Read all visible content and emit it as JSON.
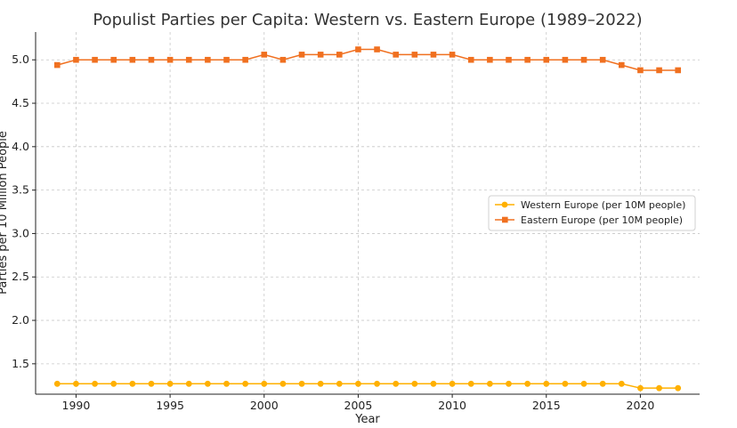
{
  "chart_data": {
    "type": "line",
    "title": "Populist Parties per Capita: Western vs. Eastern Europe (1989–2022)",
    "xlabel": "Year",
    "ylabel": "Parties per 10 Million People",
    "xlim": [
      1987.85,
      2023.15
    ],
    "ylim": [
      1.15,
      5.32
    ],
    "xticks": [
      1990,
      1995,
      2000,
      2005,
      2010,
      2015,
      2020
    ],
    "yticks": [
      1.5,
      2.0,
      2.5,
      3.0,
      3.5,
      4.0,
      4.5,
      5.0
    ],
    "ytick_labels": [
      "1.5",
      "2.0",
      "2.5",
      "3.0",
      "3.5",
      "4.0",
      "4.5",
      "5.0"
    ],
    "grid": true,
    "legend_position": "center-right",
    "x": [
      1989,
      1990,
      1991,
      1992,
      1993,
      1994,
      1995,
      1996,
      1997,
      1998,
      1999,
      2000,
      2001,
      2002,
      2003,
      2004,
      2005,
      2006,
      2007,
      2008,
      2009,
      2010,
      2011,
      2012,
      2013,
      2014,
      2015,
      2016,
      2017,
      2018,
      2019,
      2020,
      2021,
      2022
    ],
    "series": [
      {
        "name": "Western Europe (per 10M people)",
        "color": "#FFB000",
        "marker": "circle",
        "values": [
          1.27,
          1.27,
          1.27,
          1.27,
          1.27,
          1.27,
          1.27,
          1.27,
          1.27,
          1.27,
          1.27,
          1.27,
          1.27,
          1.27,
          1.27,
          1.27,
          1.27,
          1.27,
          1.27,
          1.27,
          1.27,
          1.27,
          1.27,
          1.27,
          1.27,
          1.27,
          1.27,
          1.27,
          1.27,
          1.27,
          1.27,
          1.22,
          1.22,
          1.22
        ]
      },
      {
        "name": "Eastern Europe (per 10M people)",
        "color": "#F07020",
        "marker": "square",
        "values": [
          4.94,
          5.0,
          5.0,
          5.0,
          5.0,
          5.0,
          5.0,
          5.0,
          5.0,
          5.0,
          5.0,
          5.06,
          5.0,
          5.06,
          5.06,
          5.06,
          5.12,
          5.12,
          5.06,
          5.06,
          5.06,
          5.06,
          5.0,
          5.0,
          5.0,
          5.0,
          5.0,
          5.0,
          5.0,
          5.0,
          4.94,
          4.88,
          4.88,
          4.88
        ]
      }
    ]
  }
}
